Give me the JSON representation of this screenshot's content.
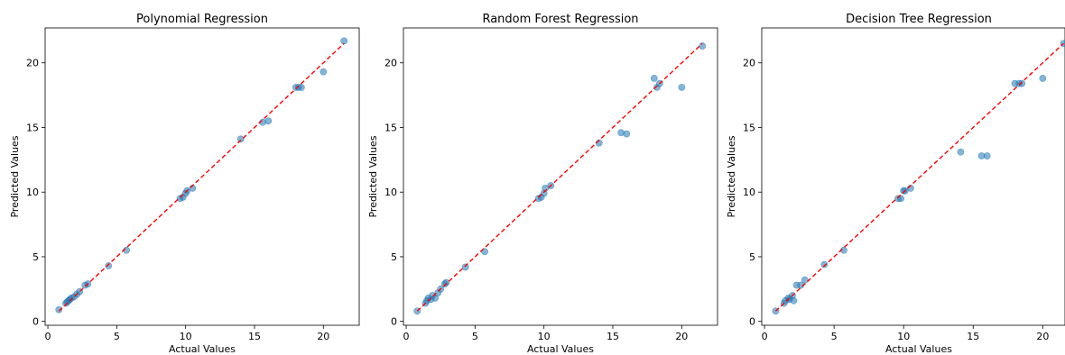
{
  "chart_data": [
    {
      "type": "scatter",
      "title": "Polynomial Regression",
      "xlabel": "Actual Values",
      "ylabel": "Predicted Values",
      "xlim": [
        -0.2,
        22.6
      ],
      "ylim": [
        -0.3,
        22.7
      ],
      "xticks": [
        0,
        5,
        10,
        15,
        20
      ],
      "yticks": [
        0,
        5,
        10,
        15,
        20
      ],
      "reference_line": {
        "x": [
          0.8,
          21.5
        ],
        "y": [
          0.8,
          21.5
        ],
        "color": "#ff0000",
        "style": "dashed"
      },
      "point_color": "#1f77b4",
      "points": [
        [
          0.8,
          0.9
        ],
        [
          1.3,
          1.4
        ],
        [
          1.4,
          1.5
        ],
        [
          1.5,
          1.6
        ],
        [
          1.6,
          1.7
        ],
        [
          1.7,
          1.8
        ],
        [
          1.9,
          1.9
        ],
        [
          2.1,
          2.1
        ],
        [
          2.3,
          2.3
        ],
        [
          2.7,
          2.8
        ],
        [
          2.9,
          2.9
        ],
        [
          4.4,
          4.3
        ],
        [
          5.7,
          5.5
        ],
        [
          9.6,
          9.5
        ],
        [
          9.8,
          9.6
        ],
        [
          10.0,
          9.9
        ],
        [
          10.1,
          10.1
        ],
        [
          10.5,
          10.3
        ],
        [
          14.0,
          14.1
        ],
        [
          15.6,
          15.4
        ],
        [
          16.0,
          15.5
        ],
        [
          18.0,
          18.1
        ],
        [
          18.2,
          18.1
        ],
        [
          18.4,
          18.1
        ],
        [
          20.0,
          19.3
        ],
        [
          21.5,
          21.7
        ]
      ]
    },
    {
      "type": "scatter",
      "title": "Random Forest Regression",
      "xlabel": "Actual Values",
      "ylabel": "Predicted Values",
      "xlim": [
        -0.2,
        22.6
      ],
      "ylim": [
        -0.3,
        22.7
      ],
      "xticks": [
        0,
        5,
        10,
        15,
        20
      ],
      "yticks": [
        0,
        5,
        10,
        15,
        20
      ],
      "reference_line": {
        "x": [
          0.8,
          21.5
        ],
        "y": [
          0.8,
          21.5
        ],
        "color": "#ff0000",
        "style": "dashed"
      },
      "point_color": "#1f77b4",
      "points": [
        [
          0.8,
          0.8
        ],
        [
          1.4,
          1.4
        ],
        [
          1.5,
          1.6
        ],
        [
          1.6,
          1.8
        ],
        [
          1.8,
          1.7
        ],
        [
          1.9,
          2.0
        ],
        [
          2.1,
          1.8
        ],
        [
          2.3,
          2.2
        ],
        [
          2.5,
          2.5
        ],
        [
          2.8,
          2.9
        ],
        [
          2.9,
          3.0
        ],
        [
          4.3,
          4.2
        ],
        [
          5.7,
          5.4
        ],
        [
          9.6,
          9.5
        ],
        [
          9.8,
          9.6
        ],
        [
          10.0,
          9.9
        ],
        [
          10.1,
          10.3
        ],
        [
          10.5,
          10.5
        ],
        [
          14.0,
          13.8
        ],
        [
          15.6,
          14.6
        ],
        [
          16.0,
          14.5
        ],
        [
          18.0,
          18.8
        ],
        [
          18.2,
          18.1
        ],
        [
          18.4,
          18.4
        ],
        [
          20.0,
          18.1
        ],
        [
          21.5,
          21.3
        ]
      ]
    },
    {
      "type": "scatter",
      "title": "Decision Tree Regression",
      "xlabel": "Actual Values",
      "ylabel": "Predicted Values",
      "xlim": [
        -0.2,
        21.6
      ],
      "ylim": [
        -0.3,
        22.7
      ],
      "xticks": [
        0,
        5,
        10,
        15,
        20
      ],
      "yticks": [
        0,
        5,
        10,
        15,
        20
      ],
      "reference_line": {
        "x": [
          0.8,
          21.5
        ],
        "y": [
          0.8,
          21.5
        ],
        "color": "#ff0000",
        "style": "dashed"
      },
      "point_color": "#1f77b4",
      "points": [
        [
          0.8,
          0.8
        ],
        [
          1.4,
          1.4
        ],
        [
          1.5,
          1.6
        ],
        [
          1.7,
          1.8
        ],
        [
          1.8,
          1.7
        ],
        [
          2.0,
          2.0
        ],
        [
          2.1,
          1.6
        ],
        [
          2.3,
          2.8
        ],
        [
          2.6,
          2.8
        ],
        [
          2.9,
          3.2
        ],
        [
          4.3,
          4.4
        ],
        [
          5.7,
          5.5
        ],
        [
          9.6,
          9.5
        ],
        [
          9.8,
          9.5
        ],
        [
          10.0,
          10.1
        ],
        [
          10.1,
          10.1
        ],
        [
          10.5,
          10.3
        ],
        [
          14.1,
          13.1
        ],
        [
          15.6,
          12.8
        ],
        [
          16.0,
          12.8
        ],
        [
          18.0,
          18.4
        ],
        [
          18.3,
          18.4
        ],
        [
          18.5,
          18.4
        ],
        [
          20.0,
          18.8
        ],
        [
          21.5,
          21.5
        ]
      ]
    }
  ]
}
